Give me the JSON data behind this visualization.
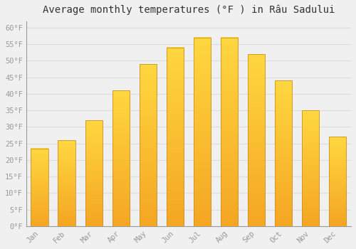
{
  "months": [
    "Jan",
    "Feb",
    "Mar",
    "Apr",
    "May",
    "Jun",
    "Jul",
    "Aug",
    "Sep",
    "Oct",
    "Nov",
    "Dec"
  ],
  "values": [
    23.5,
    26.0,
    32.0,
    41.0,
    49.0,
    54.0,
    57.0,
    57.0,
    52.0,
    44.0,
    35.0,
    27.0
  ],
  "bar_color_bottom": "#F5A623",
  "bar_color_top": "#FFD740",
  "bar_edge_color": "#C8922A",
  "background_color": "#F0F0F0",
  "grid_color": "#DDDDDD",
  "title": "Average monthly temperatures (°F ) in Râu Sadului",
  "title_fontsize": 10,
  "tick_label_color": "#999999",
  "ylim_min": 0,
  "ylim_max": 62,
  "yticks": [
    0,
    5,
    10,
    15,
    20,
    25,
    30,
    35,
    40,
    45,
    50,
    55,
    60
  ],
  "ytick_labels": [
    "0°F",
    "5°F",
    "10°F",
    "15°F",
    "20°F",
    "25°F",
    "30°F",
    "35°F",
    "40°F",
    "45°F",
    "50°F",
    "55°F",
    "60°F"
  ]
}
